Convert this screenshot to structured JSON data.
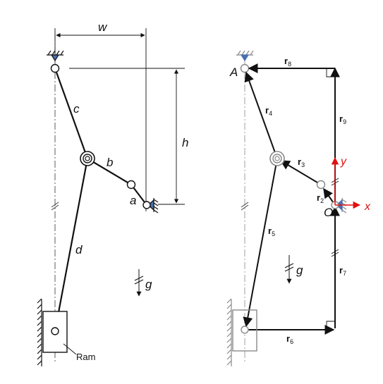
{
  "left": {
    "dimensions": {
      "width": "w",
      "height": "h"
    },
    "links": {
      "a": "a",
      "b": "b",
      "c": "c",
      "d": "d"
    },
    "ram_label": "Ram",
    "gravity": "g"
  },
  "right": {
    "point_a": "A",
    "origin": "O",
    "axes": {
      "x": "x",
      "y": "y"
    },
    "gravity": "g",
    "vectors": [
      {
        "base": "r",
        "sub": "2"
      },
      {
        "base": "r",
        "sub": "3"
      },
      {
        "base": "r",
        "sub": "4"
      },
      {
        "base": "r",
        "sub": "5"
      },
      {
        "base": "r",
        "sub": "6"
      },
      {
        "base": "r",
        "sub": "7"
      },
      {
        "base": "r",
        "sub": "8"
      },
      {
        "base": "r",
        "sub": "9"
      }
    ]
  },
  "colors": {
    "axes": "#e01010",
    "ground_fill": "#4a6fb0",
    "line": "#111111",
    "ram_gray": "#8a8a8a"
  }
}
